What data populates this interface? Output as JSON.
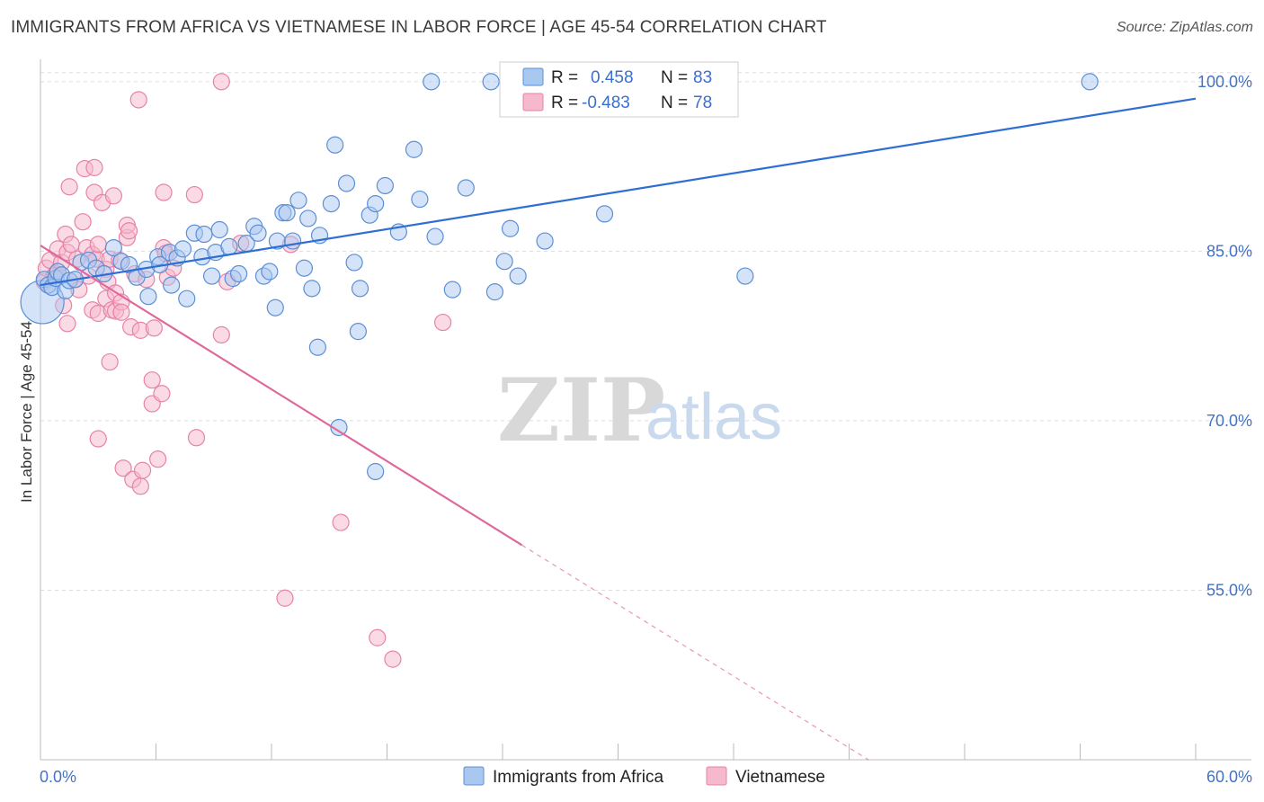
{
  "title": "IMMIGRANTS FROM AFRICA VS VIETNAMESE IN LABOR FORCE | AGE 45-54 CORRELATION CHART",
  "source": "Source: ZipAtlas.com",
  "watermark": {
    "zip": "ZIP",
    "atlas": "atlas"
  },
  "colors": {
    "blue_fill": "#a9c8ef",
    "blue_stroke": "#5b8fd6",
    "blue_line": "#2f6fd3",
    "pink_fill": "#f5b8cc",
    "pink_stroke": "#e882a6",
    "pink_line": "#e0679a",
    "tick_text": "#4472c4",
    "grid": "#dddddd"
  },
  "legend": {
    "r_label": "R =",
    "n_label": "N =",
    "series": [
      {
        "r": "0.458",
        "n": "83"
      },
      {
        "r": "-0.483",
        "n": "78"
      }
    ]
  },
  "chart_data": {
    "type": "scatter",
    "ylabel": "In Labor Force | Age 45-54",
    "x_tick_labels": [
      "0.0%",
      "60.0%"
    ],
    "y_tick_labels": [
      "100.0%",
      "85.0%",
      "70.0%",
      "55.0%"
    ],
    "y_ticks": [
      100,
      85,
      70,
      55
    ],
    "xlim": [
      0,
      60
    ],
    "ylim": [
      40,
      101.5
    ],
    "grid": true,
    "series": [
      {
        "name": "Immigrants from Africa",
        "color": "blue",
        "trend": {
          "x0": 0,
          "y0": 82.0,
          "x1": 60,
          "y1": 98.5,
          "dashed_from": null
        },
        "points": [
          [
            0.1,
            80.5,
            "big"
          ],
          [
            0.2,
            82.5
          ],
          [
            0.4,
            82.0
          ],
          [
            0.6,
            81.8
          ],
          [
            0.8,
            82.6
          ],
          [
            0.9,
            83.2
          ],
          [
            1.1,
            82.9
          ],
          [
            1.3,
            81.5
          ],
          [
            1.5,
            82.4
          ],
          [
            1.8,
            82.5
          ],
          [
            2.1,
            84.0
          ],
          [
            2.5,
            84.2
          ],
          [
            2.9,
            83.5
          ],
          [
            3.3,
            83.0
          ],
          [
            3.8,
            85.3
          ],
          [
            4.2,
            84.1
          ],
          [
            4.6,
            83.8
          ],
          [
            5.0,
            82.7
          ],
          [
            5.5,
            83.4
          ],
          [
            5.6,
            81.0
          ],
          [
            6.1,
            84.5
          ],
          [
            6.2,
            83.8
          ],
          [
            6.7,
            84.9
          ],
          [
            6.8,
            82.0
          ],
          [
            7.1,
            84.4
          ],
          [
            7.4,
            85.2
          ],
          [
            7.6,
            80.8
          ],
          [
            8.0,
            86.6
          ],
          [
            8.4,
            84.5
          ],
          [
            8.5,
            86.5
          ],
          [
            8.9,
            82.8
          ],
          [
            9.1,
            84.9
          ],
          [
            9.3,
            86.9
          ],
          [
            9.8,
            85.4
          ],
          [
            10.0,
            82.6
          ],
          [
            10.3,
            83.0
          ],
          [
            10.7,
            85.7
          ],
          [
            11.1,
            87.2
          ],
          [
            11.3,
            86.6
          ],
          [
            11.6,
            82.8
          ],
          [
            11.9,
            83.2
          ],
          [
            12.2,
            80.0
          ],
          [
            12.3,
            85.9
          ],
          [
            12.6,
            88.4
          ],
          [
            12.8,
            88.4
          ],
          [
            13.1,
            85.9
          ],
          [
            13.4,
            89.5
          ],
          [
            13.7,
            83.5
          ],
          [
            13.9,
            87.9
          ],
          [
            14.1,
            81.7
          ],
          [
            14.4,
            76.5
          ],
          [
            14.5,
            86.4
          ],
          [
            15.1,
            89.2
          ],
          [
            15.3,
            94.4
          ],
          [
            15.5,
            69.4
          ],
          [
            15.9,
            91.0
          ],
          [
            16.3,
            84.0
          ],
          [
            16.5,
            77.9
          ],
          [
            16.6,
            81.7
          ],
          [
            17.1,
            88.2
          ],
          [
            17.4,
            89.2
          ],
          [
            17.4,
            65.5
          ],
          [
            17.9,
            90.8
          ],
          [
            18.6,
            86.7
          ],
          [
            19.4,
            94.0
          ],
          [
            19.7,
            89.6
          ],
          [
            20.3,
            100.0
          ],
          [
            20.5,
            86.3
          ],
          [
            21.4,
            81.6
          ],
          [
            22.1,
            90.6
          ],
          [
            23.4,
            100.0
          ],
          [
            23.6,
            81.4
          ],
          [
            24.1,
            84.1
          ],
          [
            24.4,
            87.0
          ],
          [
            24.8,
            82.8
          ],
          [
            26.2,
            85.9
          ],
          [
            29.3,
            88.3
          ],
          [
            36.6,
            82.8
          ],
          [
            54.5,
            100.0
          ]
        ]
      },
      {
        "name": "Vietnamese",
        "color": "pink",
        "trend": {
          "x0": 0,
          "y0": 85.5,
          "x1": 25,
          "y1": 59.0,
          "dash_x1": 43,
          "dash_y1": 40.0
        },
        "points": [
          [
            0.2,
            82.3
          ],
          [
            0.3,
            83.5
          ],
          [
            0.5,
            84.2
          ],
          [
            0.7,
            82.8
          ],
          [
            0.8,
            83.0
          ],
          [
            0.9,
            85.2
          ],
          [
            1.1,
            84.0
          ],
          [
            1.2,
            80.2
          ],
          [
            1.3,
            86.5
          ],
          [
            1.4,
            84.9
          ],
          [
            1.4,
            78.6
          ],
          [
            1.6,
            85.6
          ],
          [
            1.8,
            82.5
          ],
          [
            1.5,
            90.7
          ],
          [
            1.9,
            84.3
          ],
          [
            2.0,
            81.6
          ],
          [
            2.2,
            87.6
          ],
          [
            2.3,
            92.3
          ],
          [
            2.4,
            85.3
          ],
          [
            2.5,
            82.8
          ],
          [
            2.7,
            79.8
          ],
          [
            2.7,
            84.7
          ],
          [
            2.8,
            92.4
          ],
          [
            2.8,
            90.2
          ],
          [
            2.9,
            84.3
          ],
          [
            3.0,
            85.6
          ],
          [
            3.0,
            79.5
          ],
          [
            3.0,
            68.4
          ],
          [
            3.2,
            89.3
          ],
          [
            3.4,
            80.8
          ],
          [
            3.4,
            83.4
          ],
          [
            3.5,
            82.3
          ],
          [
            3.6,
            84.3
          ],
          [
            3.6,
            75.2
          ],
          [
            3.7,
            79.8
          ],
          [
            3.8,
            89.9
          ],
          [
            3.9,
            79.7
          ],
          [
            3.9,
            81.3
          ],
          [
            4.1,
            84.2
          ],
          [
            4.2,
            80.5
          ],
          [
            4.2,
            79.6
          ],
          [
            4.3,
            65.8
          ],
          [
            4.5,
            86.2
          ],
          [
            4.5,
            87.3
          ],
          [
            4.6,
            86.8
          ],
          [
            4.7,
            78.3
          ],
          [
            4.8,
            64.8
          ],
          [
            4.9,
            83.0
          ],
          [
            5.1,
            98.4
          ],
          [
            5.2,
            78.0
          ],
          [
            5.2,
            64.2
          ],
          [
            5.3,
            65.6
          ],
          [
            5.5,
            82.5
          ],
          [
            5.8,
            73.6
          ],
          [
            5.8,
            71.5
          ],
          [
            5.9,
            78.2
          ],
          [
            6.1,
            66.6
          ],
          [
            6.3,
            72.4
          ],
          [
            6.4,
            90.2
          ],
          [
            6.4,
            85.3
          ],
          [
            6.5,
            84.8
          ],
          [
            6.6,
            82.7
          ],
          [
            6.9,
            83.5
          ],
          [
            8.0,
            90.0
          ],
          [
            8.1,
            68.5
          ],
          [
            9.4,
            100.0
          ],
          [
            9.4,
            77.6
          ],
          [
            9.7,
            82.3
          ],
          [
            10.4,
            85.7
          ],
          [
            12.7,
            54.3
          ],
          [
            13.0,
            85.6
          ],
          [
            15.6,
            61.0
          ],
          [
            17.5,
            50.8
          ],
          [
            18.3,
            48.9
          ],
          [
            20.9,
            78.7
          ]
        ]
      }
    ]
  }
}
